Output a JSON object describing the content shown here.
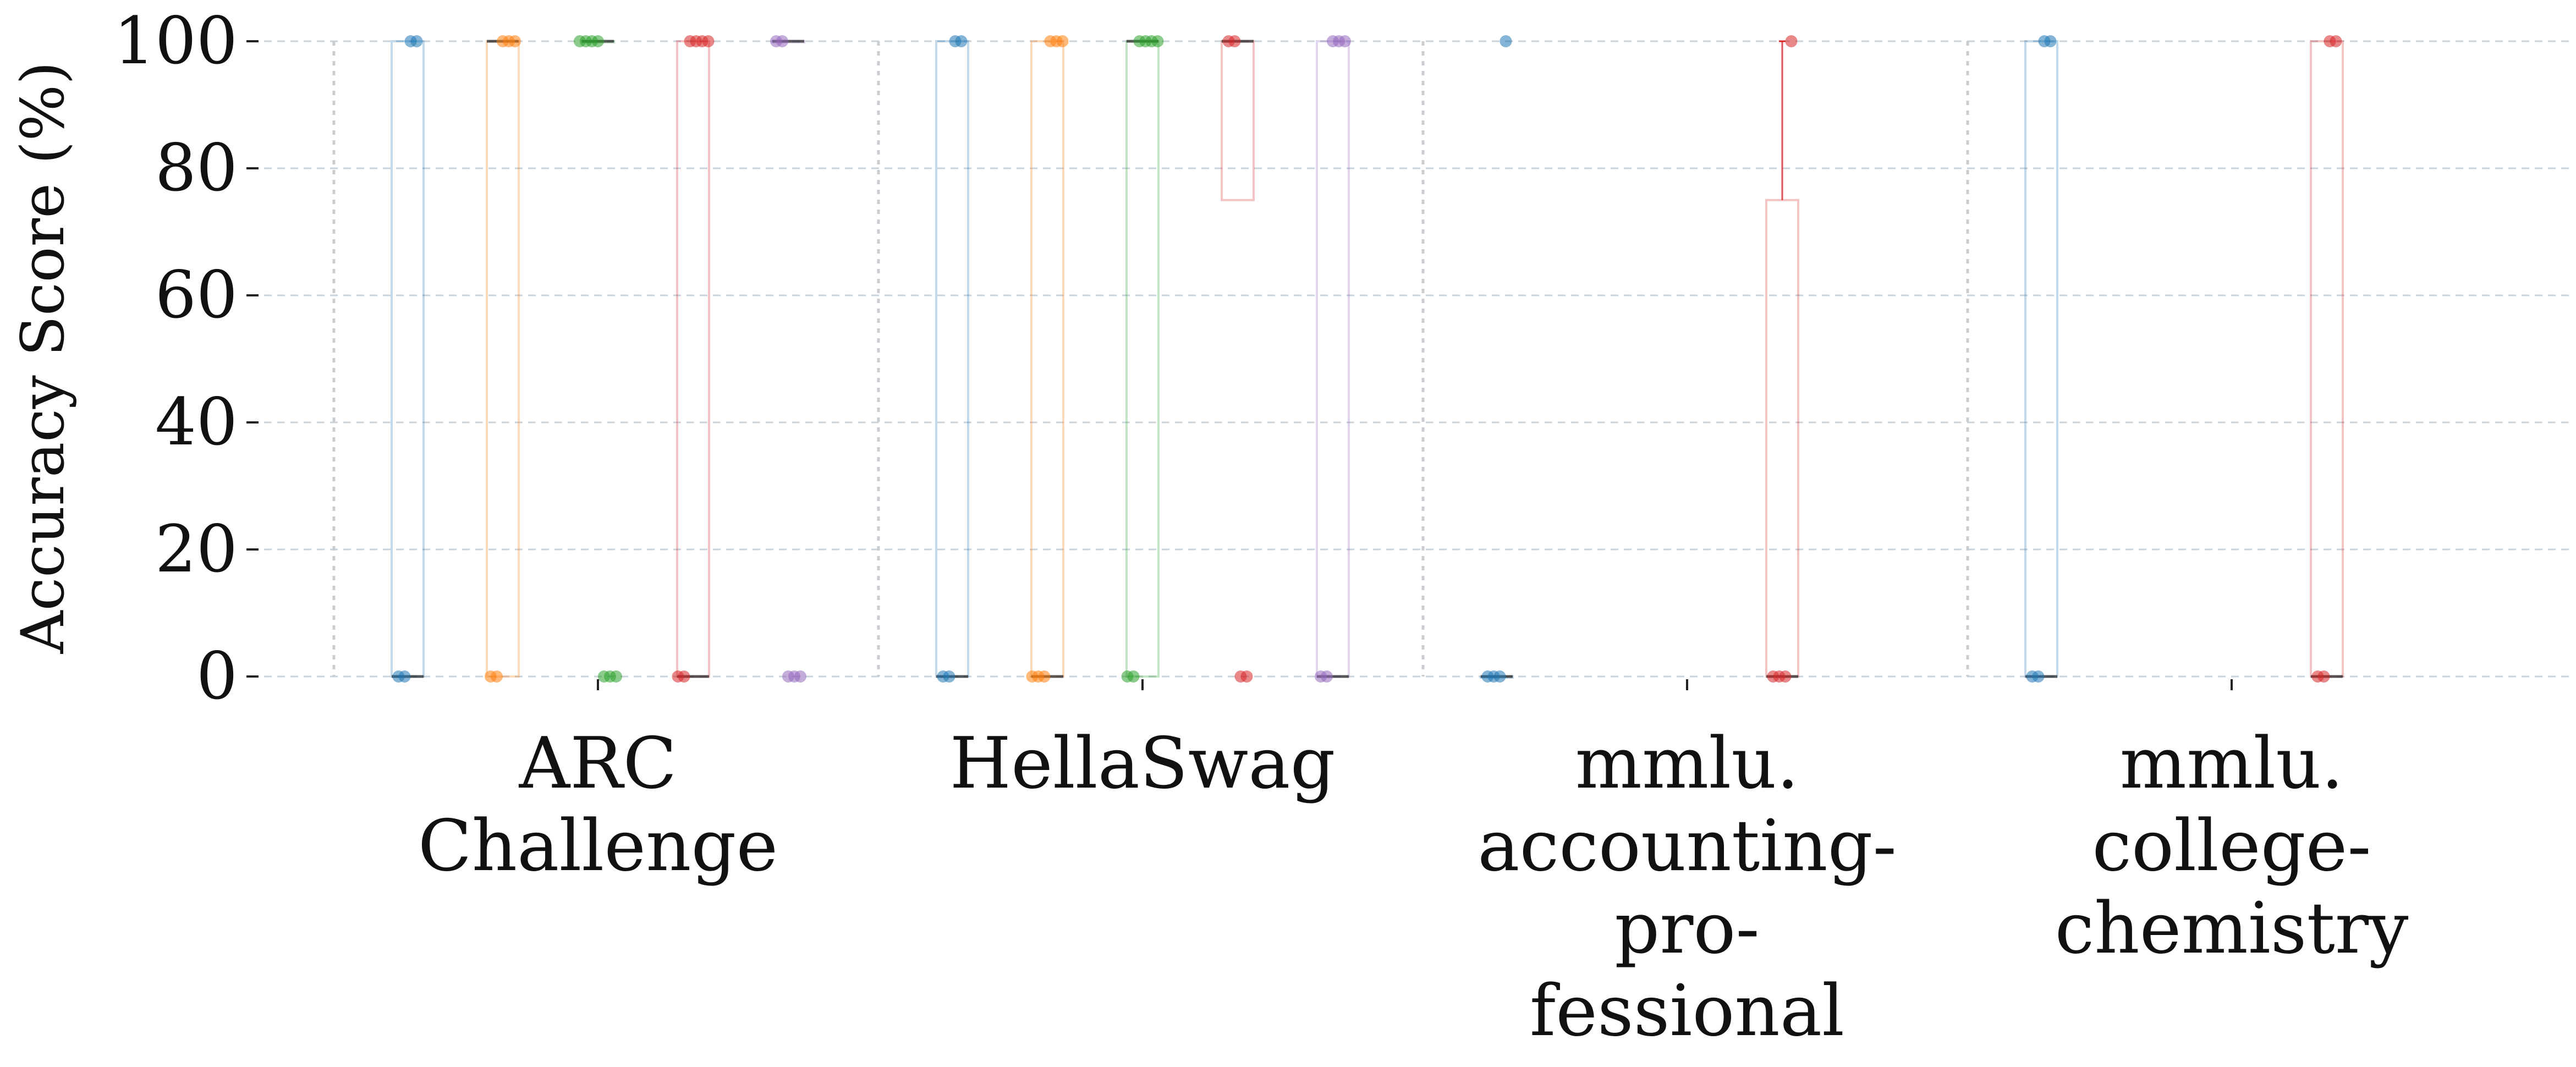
{
  "chart_data": {
    "type": "box",
    "title": "",
    "xlabel": "",
    "ylabel": "Accuracy Score (%)",
    "ylim": [
      0,
      100
    ],
    "yticks": [
      0,
      20,
      40,
      60,
      80,
      100
    ],
    "categories": [
      [
        "ARC",
        "Challenge"
      ],
      [
        "HellaSwag"
      ],
      [
        "mmlu.",
        "accounting-",
        "pro-",
        "fessional"
      ],
      [
        "mmlu.",
        "college-",
        "chemistry"
      ]
    ],
    "grid": "horizontal dashed",
    "legend": "none",
    "series_colors": [
      "#1f77b4",
      "#ff7f0e",
      "#2ca02c",
      "#d62728",
      "#9467bd"
    ],
    "boxes": [
      {
        "category": 0,
        "series": 0,
        "q1": 0,
        "median": 0,
        "q3": 100,
        "whisker_low": 0,
        "whisker_high": 100,
        "points": [
          0,
          0,
          100,
          100
        ]
      },
      {
        "category": 0,
        "series": 1,
        "q1": 0,
        "median": 100,
        "q3": 100,
        "whisker_low": 0,
        "whisker_high": 100,
        "points": [
          0,
          0,
          100,
          100,
          100
        ]
      },
      {
        "category": 0,
        "series": 2,
        "q1": 100,
        "median": 100,
        "q3": 100,
        "whisker_low": 100,
        "whisker_high": 100,
        "points": [
          100,
          100,
          100,
          100,
          0,
          0,
          0
        ]
      },
      {
        "category": 0,
        "series": 3,
        "q1": 0,
        "median": 0,
        "q3": 100,
        "whisker_low": 0,
        "whisker_high": 100,
        "points": [
          0,
          0,
          100,
          100,
          100,
          100
        ]
      },
      {
        "category": 0,
        "series": 4,
        "q1": 100,
        "median": 100,
        "q3": 100,
        "whisker_low": 100,
        "whisker_high": 100,
        "points": [
          100,
          100,
          0,
          0,
          0
        ]
      },
      {
        "category": 1,
        "series": 0,
        "q1": 0,
        "median": 0,
        "q3": 100,
        "whisker_low": 0,
        "whisker_high": 100,
        "points": [
          0,
          0,
          100,
          100
        ]
      },
      {
        "category": 1,
        "series": 1,
        "q1": 0,
        "median": 0,
        "q3": 100,
        "whisker_low": 0,
        "whisker_high": 100,
        "points": [
          0,
          0,
          0,
          100,
          100,
          100
        ]
      },
      {
        "category": 1,
        "series": 2,
        "q1": 0,
        "median": 100,
        "q3": 100,
        "whisker_low": 0,
        "whisker_high": 100,
        "points": [
          0,
          0,
          100,
          100,
          100,
          100
        ]
      },
      {
        "category": 1,
        "series": 3,
        "q1": 75,
        "median": 100,
        "q3": 100,
        "whisker_low": 75,
        "whisker_high": 100,
        "points": [
          100,
          100,
          0,
          0
        ]
      },
      {
        "category": 1,
        "series": 4,
        "q1": 0,
        "median": 0,
        "q3": 100,
        "whisker_low": 0,
        "whisker_high": 100,
        "points": [
          0,
          0,
          100,
          100,
          100
        ]
      },
      {
        "category": 2,
        "series": 0,
        "q1": 0,
        "median": 0,
        "q3": 0,
        "whisker_low": 0,
        "whisker_high": 0,
        "points": [
          0,
          0,
          0,
          100
        ]
      },
      {
        "category": 2,
        "series": 3,
        "q1": 0,
        "median": 0,
        "q3": 75,
        "whisker_low": 0,
        "whisker_high": 100,
        "points": [
          0,
          0,
          0,
          100
        ]
      },
      {
        "category": 3,
        "series": 0,
        "q1": 0,
        "median": 0,
        "q3": 100,
        "whisker_low": 0,
        "whisker_high": 100,
        "points": [
          0,
          0,
          100,
          100
        ]
      },
      {
        "category": 3,
        "series": 3,
        "q1": 0,
        "median": 0,
        "q3": 100,
        "whisker_low": 0,
        "whisker_high": 100,
        "points": [
          0,
          0,
          100,
          100
        ]
      }
    ]
  }
}
